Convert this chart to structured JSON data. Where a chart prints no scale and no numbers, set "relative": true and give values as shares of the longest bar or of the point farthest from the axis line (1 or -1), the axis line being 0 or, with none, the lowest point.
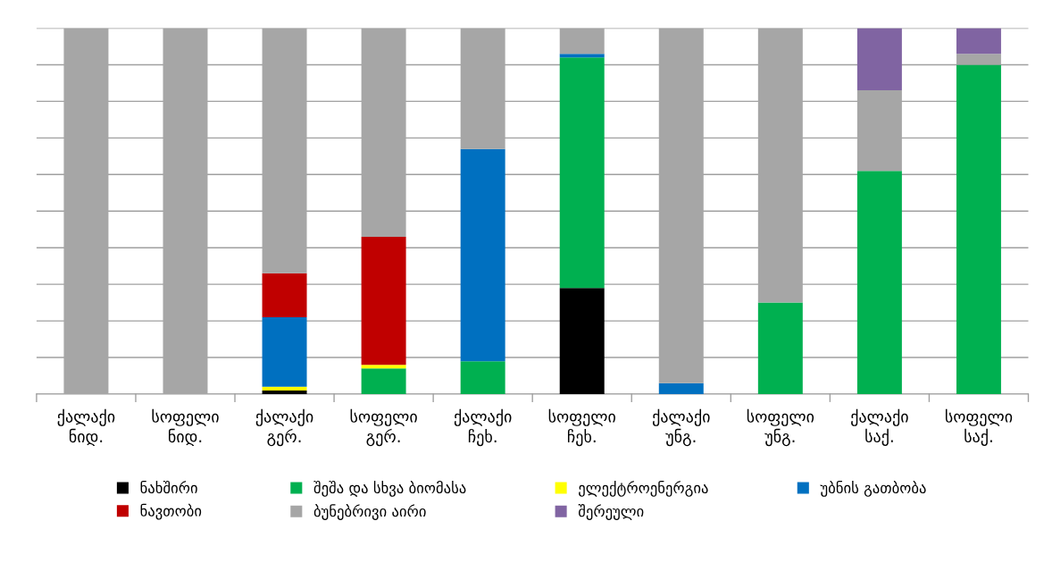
{
  "chart_data": {
    "type": "bar",
    "stacked": true,
    "relative": true,
    "grid": "y",
    "legend": "bottom",
    "categories": [
      "ქალაქი\nნიდ.",
      "სოფელი\nნიდ.",
      "ქალაქი\nგერ.",
      "სოფელი\nგერ.",
      "ქალაქი\nჩეხ.",
      "სოფელი\nჩეხ.",
      "ქალაქი\nუნგ.",
      "სოფელი\nუნგ.",
      "ქალაქი\nსაქ.",
      "სოფელი\nსაქ."
    ],
    "series": [
      {
        "name": "ნახშირი",
        "color": "#000000",
        "values": [
          0,
          0,
          0.01,
          0,
          0,
          0.29,
          0,
          0,
          0,
          0
        ]
      },
      {
        "name": "შეშა და სხვა ბიომასა",
        "color": "#00b050",
        "values": [
          0,
          0,
          0,
          0.07,
          0.09,
          0.63,
          0,
          0.25,
          0.61,
          0.9
        ]
      },
      {
        "name": "ელექტროენერგია",
        "color": "#ffff00",
        "values": [
          0,
          0,
          0.01,
          0.01,
          0,
          0,
          0,
          0,
          0,
          0
        ]
      },
      {
        "name": "უბნის გათბობა",
        "color": "#0070c0",
        "values": [
          0,
          0,
          0.19,
          0,
          0.58,
          0.01,
          0.03,
          0,
          0,
          0
        ]
      },
      {
        "name": "ნავთობი",
        "color": "#c00000",
        "values": [
          0,
          0,
          0.12,
          0.35,
          0,
          0,
          0,
          0,
          0,
          0
        ]
      },
      {
        "name": "ბუნებრივი აირი",
        "color": "#a6a6a6",
        "values": [
          1,
          1,
          0.67,
          0.57,
          0.33,
          0.07,
          0.97,
          0.75,
          0.22,
          0.03
        ]
      },
      {
        "name": "შერეული",
        "color": "#8064a2",
        "values": [
          0,
          0,
          0,
          0,
          0,
          0,
          0,
          0,
          0.17,
          0.07
        ]
      }
    ]
  }
}
